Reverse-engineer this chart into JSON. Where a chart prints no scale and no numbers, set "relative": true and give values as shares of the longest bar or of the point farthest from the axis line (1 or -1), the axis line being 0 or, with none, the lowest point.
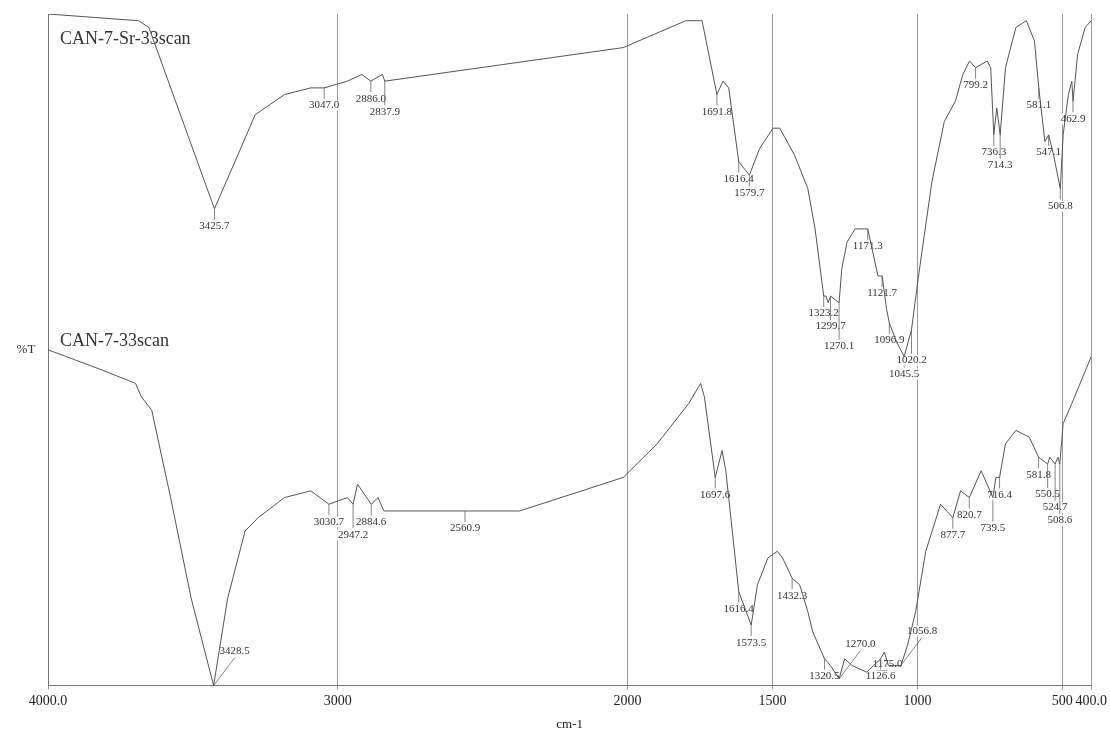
{
  "chart_data": {
    "type": "line",
    "relative": true,
    "xlabel": "cm-1",
    "ylabel": "%T",
    "xlim": [
      4000,
      400
    ],
    "xticks": [
      {
        "value": 4000,
        "label": "4000.0"
      },
      3000,
      2000,
      1500,
      1000,
      500,
      {
        "value": 400,
        "label": "400.0"
      }
    ],
    "grid": "x",
    "legend": false,
    "marker": "none",
    "line_style": "solid",
    "series": [
      {
        "name": "CAN-7-Sr-33scan",
        "color": "#555555",
        "x": [
          4000,
          3688,
          3652,
          3425.7,
          3355,
          3285,
          3184,
          3093,
          3047.0,
          2967,
          2917,
          2886.0,
          2846,
          2837.9,
          2015,
          1799,
          1753,
          1743,
          1691.8,
          1671,
          1651,
          1616.4,
          1579.7,
          1544,
          1498,
          1475,
          1424,
          1378,
          1353,
          1323.2,
          1315,
          1308,
          1299.7,
          1270.1,
          1261,
          1243,
          1215,
          1182,
          1171.3,
          1136,
          1121.7,
          1106,
          1096.9,
          1070,
          1045.5,
          1020.2,
          996,
          950,
          907,
          869,
          843,
          820,
          799.2,
          759,
          747,
          736.3,
          726,
          714.3,
          696,
          660,
          624,
          596,
          581.1,
          560,
          547.1,
          530,
          506.8,
          497,
          479,
          467,
          462.9,
          447,
          421,
          400
        ],
        "values": [
          1,
          0.99,
          0.98,
          0.71,
          0.78,
          0.85,
          0.88,
          0.89,
          0.89,
          0.9,
          0.91,
          0.9,
          0.91,
          0.9,
          0.95,
          0.99,
          0.99,
          0.99,
          0.88,
          0.9,
          0.89,
          0.78,
          0.76,
          0.8,
          0.83,
          0.83,
          0.79,
          0.74,
          0.68,
          0.58,
          0.58,
          0.57,
          0.58,
          0.57,
          0.62,
          0.66,
          0.68,
          0.68,
          0.68,
          0.61,
          0.61,
          0.56,
          0.54,
          0.51,
          0.49,
          0.53,
          0.61,
          0.75,
          0.84,
          0.87,
          0.91,
          0.93,
          0.92,
          0.93,
          0.92,
          0.82,
          0.86,
          0.82,
          0.92,
          0.98,
          0.99,
          0.96,
          0.89,
          0.81,
          0.82,
          0.79,
          0.74,
          0.82,
          0.88,
          0.9,
          0.87,
          0.94,
          0.98,
          0.99
        ]
      },
      {
        "name": "CAN-7-33scan",
        "color": "#555555",
        "x": [
          4000,
          3814,
          3698,
          3678,
          3642,
          3577,
          3506,
          3428.5,
          3380,
          3320,
          3275,
          3184,
          3093,
          3030.7,
          2967,
          2947.2,
          2932,
          2884.6,
          2861,
          2841,
          2560.9,
          2373,
          2086,
          2015,
          1898,
          1789,
          1748,
          1735,
          1697.6,
          1674,
          1661,
          1616.4,
          1573.5,
          1552,
          1516,
          1483,
          1465,
          1432.3,
          1406,
          1378,
          1361,
          1320.5,
          1300,
          1270.0,
          1251,
          1226,
          1175.0,
          1126.6,
          1114,
          1100,
          1056.8,
          1034,
          1006,
          971,
          920,
          877.7,
          851,
          820.7,
          780,
          739.5,
          729,
          716.4,
          696,
          660,
          614,
          581.8,
          550.5,
          543,
          524.7,
          515,
          508.6,
          497,
          467,
          400
        ],
        "values": [
          0.5,
          0.47,
          0.45,
          0.43,
          0.41,
          0.28,
          0.13,
          0,
          0.13,
          0.23,
          0.25,
          0.28,
          0.29,
          0.27,
          0.28,
          0.27,
          0.3,
          0.27,
          0.28,
          0.26,
          0.26,
          0.26,
          0.3,
          0.31,
          0.36,
          0.42,
          0.45,
          0.43,
          0.31,
          0.35,
          0.32,
          0.14,
          0.09,
          0.15,
          0.19,
          0.2,
          0.19,
          0.16,
          0.15,
          0.11,
          0.08,
          0.04,
          0.03,
          0.01,
          0.04,
          0.03,
          0.02,
          0.04,
          0.05,
          0.03,
          0.03,
          0.06,
          0.11,
          0.2,
          0.27,
          0.25,
          0.29,
          0.28,
          0.32,
          0.28,
          0.31,
          0.31,
          0.36,
          0.38,
          0.37,
          0.34,
          0.33,
          0.34,
          0.33,
          0.34,
          0.33,
          0.39,
          0.42,
          0.49
        ]
      }
    ],
    "annotations": [
      {
        "text": "3425.7",
        "x": 3425.7,
        "y": 0.71
      },
      {
        "text": "3047.0",
        "x": 3047.0,
        "y": 0.89
      },
      {
        "text": "2886.0",
        "x": 2886.0,
        "y": 0.9
      },
      {
        "text": "2837.9",
        "x": 2837.9,
        "y": 0.9
      },
      {
        "text": "1691.8",
        "x": 1691.8,
        "y": 0.88
      },
      {
        "text": "1616.4",
        "x": 1616.4,
        "y": 0.78
      },
      {
        "text": "1579.7",
        "x": 1579.7,
        "y": 0.76
      },
      {
        "text": "1323.2",
        "x": 1323.2,
        "y": 0.58
      },
      {
        "text": "1299.7",
        "x": 1299.7,
        "y": 0.58
      },
      {
        "text": "1270.1",
        "x": 1270.1,
        "y": 0.57
      },
      {
        "text": "1171.3",
        "x": 1171.3,
        "y": 0.68
      },
      {
        "text": "1121.7",
        "x": 1121.7,
        "y": 0.61
      },
      {
        "text": "1096.9",
        "x": 1096.9,
        "y": 0.54
      },
      {
        "text": "1045.5",
        "x": 1045.5,
        "y": 0.49
      },
      {
        "text": "1020.2",
        "x": 1020.2,
        "y": 0.53
      },
      {
        "text": "799.2",
        "x": 799.2,
        "y": 0.92
      },
      {
        "text": "736.3",
        "x": 736.3,
        "y": 0.82
      },
      {
        "text": "714.3",
        "x": 714.3,
        "y": 0.82
      },
      {
        "text": "581.1",
        "x": 581.1,
        "y": 0.89
      },
      {
        "text": "547.1",
        "x": 547.1,
        "y": 0.82
      },
      {
        "text": "506.8",
        "x": 506.8,
        "y": 0.74
      },
      {
        "text": "462.9",
        "x": 462.9,
        "y": 0.87
      },
      {
        "text": "3428.5",
        "x": 3428.5,
        "y": 0
      },
      {
        "text": "3030.7",
        "x": 3030.7,
        "y": 0.27
      },
      {
        "text": "2947.2",
        "x": 2947.2,
        "y": 0.27
      },
      {
        "text": "2884.6",
        "x": 2884.6,
        "y": 0.27
      },
      {
        "text": "2560.9",
        "x": 2560.9,
        "y": 0.26
      },
      {
        "text": "1697.6",
        "x": 1697.6,
        "y": 0.31
      },
      {
        "text": "1616.4",
        "x": 1616.4,
        "y": 0.14
      },
      {
        "text": "1573.5",
        "x": 1573.5,
        "y": 0.09
      },
      {
        "text": "1432.3",
        "x": 1432.3,
        "y": 0.16
      },
      {
        "text": "1320.5",
        "x": 1320.5,
        "y": 0.04
      },
      {
        "text": "1270.0",
        "x": 1270.0,
        "y": 0.01
      },
      {
        "text": "1175.0",
        "x": 1175.0,
        "y": 0.02
      },
      {
        "text": "1126.6",
        "x": 1126.6,
        "y": 0.04
      },
      {
        "text": "1056.8",
        "x": 1056.8,
        "y": 0.03
      },
      {
        "text": "877.7",
        "x": 877.7,
        "y": 0.25
      },
      {
        "text": "820.7",
        "x": 820.7,
        "y": 0.28
      },
      {
        "text": "739.5",
        "x": 739.5,
        "y": 0.28
      },
      {
        "text": "716.4",
        "x": 716.4,
        "y": 0.31
      },
      {
        "text": "581.8",
        "x": 581.8,
        "y": 0.34
      },
      {
        "text": "550.5",
        "x": 550.5,
        "y": 0.33
      },
      {
        "text": "524.7",
        "x": 524.7,
        "y": 0.33
      },
      {
        "text": "508.6",
        "x": 508.6,
        "y": 0.33
      }
    ]
  }
}
